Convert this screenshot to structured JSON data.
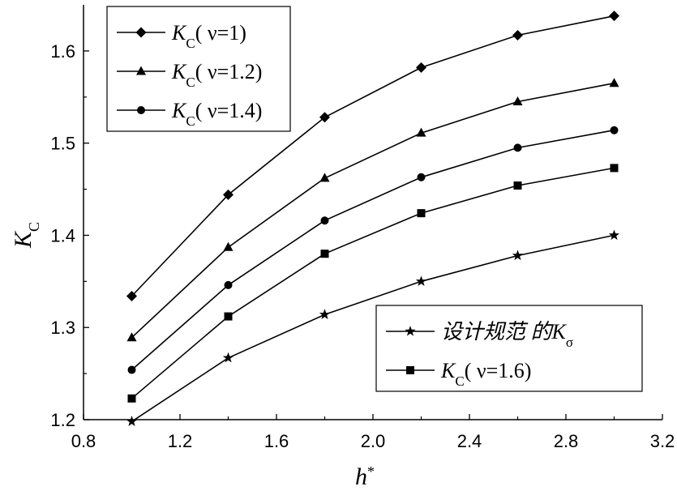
{
  "chart_data": {
    "type": "line",
    "title": "",
    "xlabel": "h",
    "xlabel_sup": "*",
    "ylabel": "K",
    "ylabel_sub": "C",
    "xlim": [
      0.8,
      3.2
    ],
    "ylim": [
      1.2,
      1.65
    ],
    "x_ticks": [
      "0.8",
      "1.2",
      "1.6",
      "2.0",
      "2.4",
      "2.8",
      "3.2"
    ],
    "y_ticks": [
      "1.2",
      "1.3",
      "1.4",
      "1.5",
      "1.6"
    ],
    "grid": false,
    "x": [
      1.0,
      1.4,
      1.8,
      2.2,
      2.6,
      3.0
    ],
    "series": [
      {
        "id": "nu1",
        "label_main": "K",
        "label_sub": "C",
        "label_rest": "( ν=1)",
        "marker": "diamond",
        "values": [
          1.334,
          1.444,
          1.528,
          1.582,
          1.617,
          1.638
        ]
      },
      {
        "id": "nu1_2",
        "label_main": "K",
        "label_sub": "C",
        "label_rest": "( ν=1.2)",
        "marker": "triangle",
        "values": [
          1.289,
          1.387,
          1.462,
          1.511,
          1.545,
          1.565
        ]
      },
      {
        "id": "nu1_4",
        "label_main": "K",
        "label_sub": "C",
        "label_rest": "( ν=1.4)",
        "marker": "circle",
        "values": [
          1.254,
          1.346,
          1.416,
          1.463,
          1.495,
          1.514
        ]
      },
      {
        "id": "nu1_6",
        "label_main": "K",
        "label_sub": "C",
        "label_rest": "( ν=1.6)",
        "marker": "square",
        "values": [
          1.223,
          1.312,
          1.38,
          1.424,
          1.454,
          1.473
        ]
      },
      {
        "id": "code",
        "label_main": "设计规范  的K",
        "label_sub": "σ",
        "label_rest": "",
        "marker": "star",
        "values": [
          1.198,
          1.267,
          1.314,
          1.35,
          1.378,
          1.4
        ]
      }
    ],
    "legend_top_order": [
      "nu1",
      "nu1_2",
      "nu1_4"
    ],
    "legend_bottom_order": [
      "code",
      "nu1_6"
    ],
    "legend_top_position": "top-left",
    "legend_bottom_position": "bottom-right",
    "line_color": "#000000"
  }
}
